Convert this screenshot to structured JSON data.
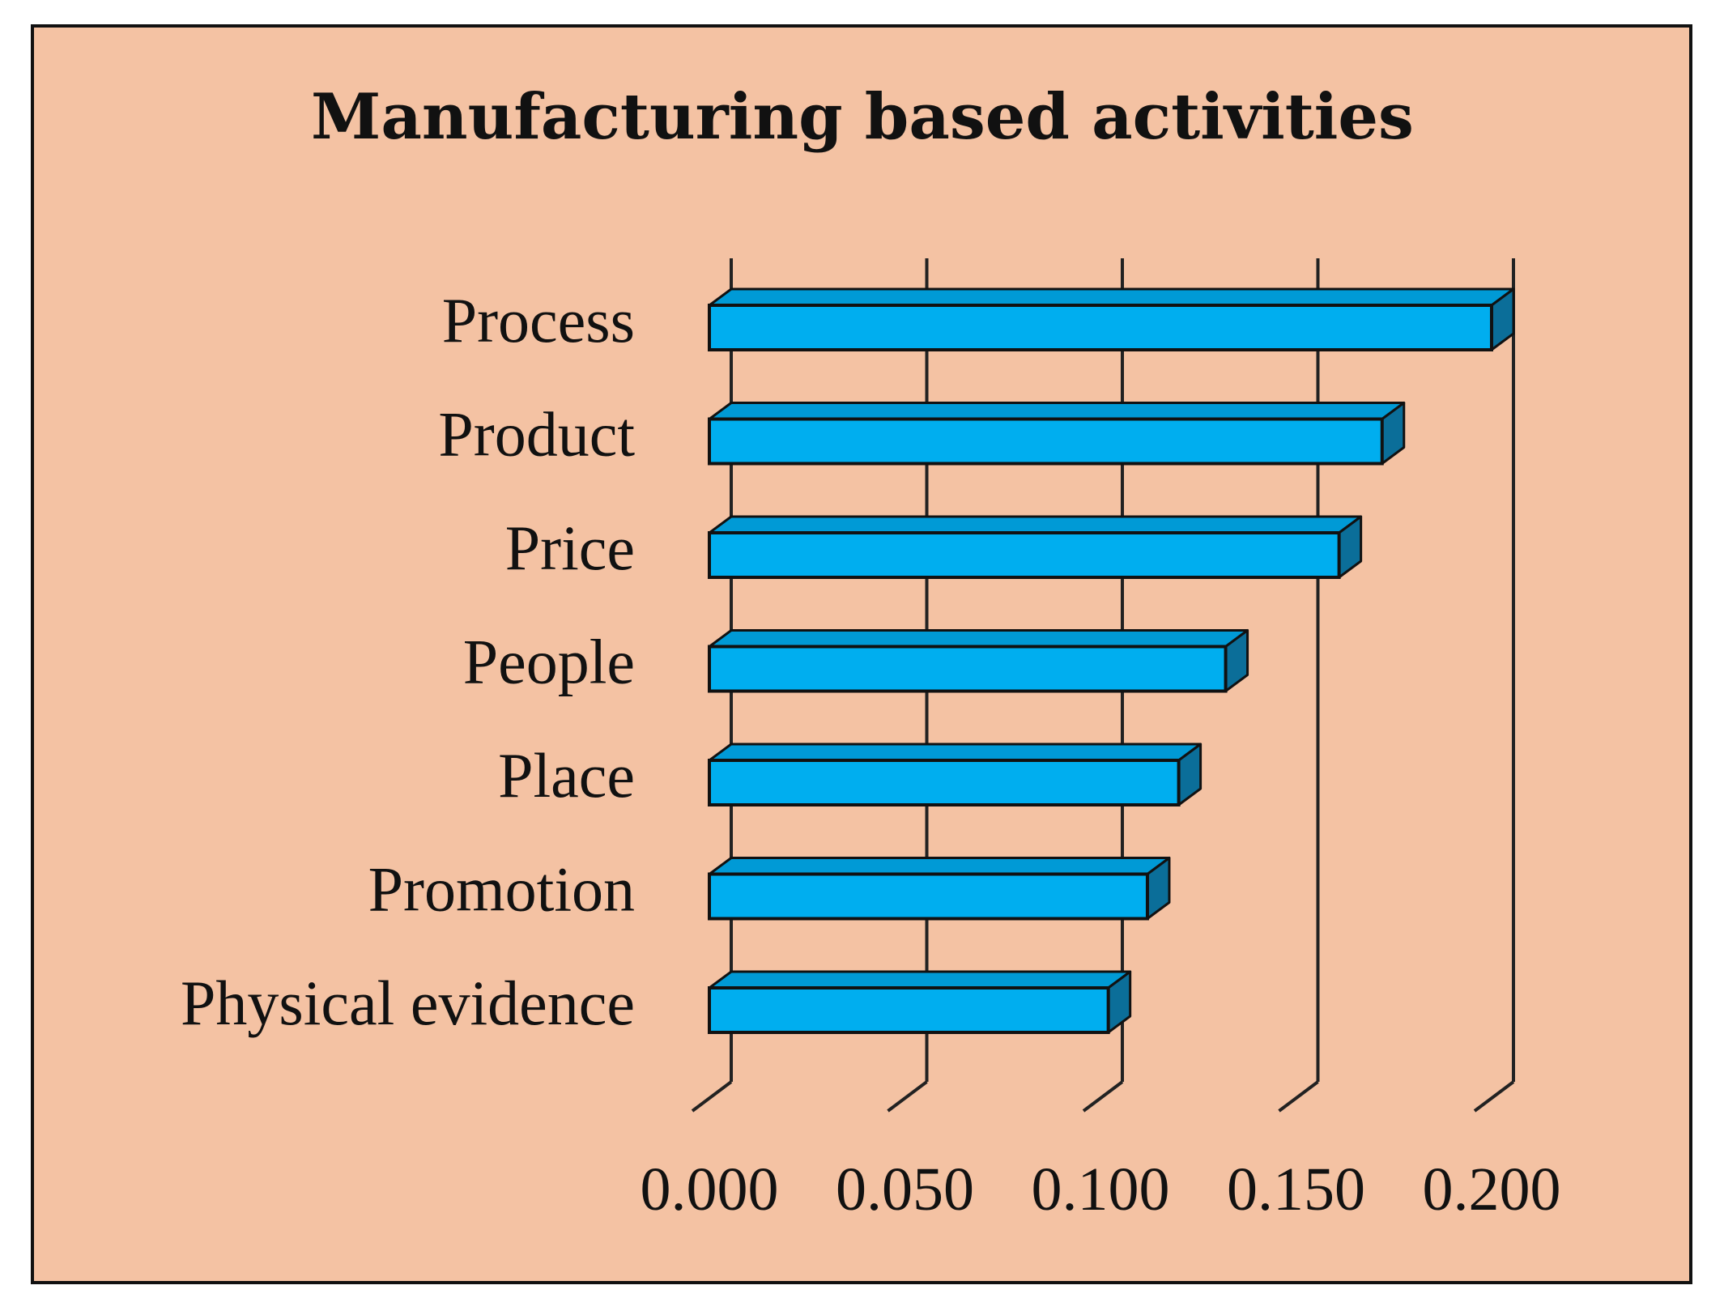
{
  "chart_data": {
    "type": "bar",
    "orientation": "horizontal",
    "style": "3d",
    "title": "Manufacturing based activities",
    "xlabel": "",
    "ylabel": "",
    "categories": [
      "Process",
      "Product",
      "Price",
      "People",
      "Place",
      "Promotion",
      "Physical evidence"
    ],
    "values": [
      0.2,
      0.172,
      0.161,
      0.132,
      0.12,
      0.112,
      0.102
    ],
    "xlim": [
      0,
      0.2
    ],
    "xticks": [
      "0.000",
      "0.050",
      "0.100",
      "0.150",
      "0.200"
    ],
    "grid": true,
    "legend": "none",
    "colors": {
      "background": "#f4c2a3",
      "bar_front": "#00aeef",
      "bar_top": "#009ad6",
      "bar_side": "#0b6e99",
      "outline": "#111111",
      "gridline": "#222222",
      "text": "#111111"
    }
  }
}
